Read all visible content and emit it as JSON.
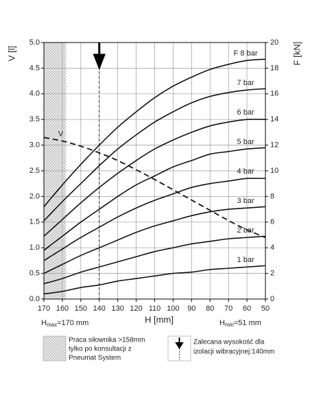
{
  "chart_data": {
    "type": "line",
    "x_label": "H [mm]",
    "y_label": "V [l]",
    "y2_label": "F [kN]",
    "hmax": {
      "base": "H",
      "sub": "max",
      "rest": "=170 mm"
    },
    "hmin": {
      "base": "H",
      "sub": "min",
      "rest": "=51 mm"
    },
    "x": [
      170,
      160,
      150,
      140,
      130,
      120,
      110,
      100,
      90,
      80,
      70,
      60,
      50
    ],
    "xlim": [
      170,
      50
    ],
    "xticks": [
      170,
      160,
      150,
      140,
      130,
      120,
      110,
      100,
      90,
      80,
      70,
      60,
      50
    ],
    "ylim": [
      0,
      5
    ],
    "yticks": [
      {
        "value": 0,
        "label": "0.0"
      },
      0.5,
      {
        "value": 1,
        "label": "1.0"
      },
      1.5,
      {
        "value": 2,
        "label": "2.0"
      },
      2.5,
      {
        "value": 3,
        "label": "3.0"
      },
      3.5,
      {
        "value": 4,
        "label": "4.0"
      },
      4.5,
      {
        "value": 5,
        "label": "5.0"
      }
    ],
    "y2lim": [
      0,
      20
    ],
    "y2ticks": [
      0,
      2,
      4,
      6,
      8,
      10,
      12,
      14,
      16,
      18,
      20
    ],
    "grid": true,
    "series": [
      {
        "name": "F 8 bar",
        "color": "#111111",
        "axis": "y2",
        "values": [
          7.2,
          8.9,
          10.5,
          12.0,
          13.4,
          14.6,
          15.7,
          16.6,
          17.3,
          17.9,
          18.3,
          18.6,
          18.7
        ]
      },
      {
        "name": "7 bar",
        "color": "#111111",
        "axis": "y2",
        "values": [
          6.1,
          7.6,
          9.0,
          10.4,
          11.7,
          12.8,
          13.8,
          14.6,
          15.3,
          15.8,
          16.1,
          16.3,
          16.4
        ]
      },
      {
        "name": "6 bar",
        "color": "#111111",
        "axis": "y2",
        "values": [
          4.9,
          6.2,
          7.5,
          8.7,
          9.8,
          10.8,
          11.7,
          12.4,
          13.0,
          13.5,
          13.8,
          14.0,
          14.0
        ]
      },
      {
        "name": "5 bar",
        "color": "#111111",
        "axis": "y2",
        "values": [
          3.8,
          4.9,
          6.0,
          7.0,
          8.0,
          8.9,
          9.6,
          10.3,
          10.8,
          11.3,
          11.5,
          11.7,
          11.8
        ]
      },
      {
        "name": "4 bar",
        "color": "#111111",
        "axis": "y2",
        "values": [
          3.0,
          3.9,
          4.8,
          5.6,
          6.4,
          7.1,
          7.7,
          8.2,
          8.7,
          9.0,
          9.2,
          9.4,
          9.4
        ]
      },
      {
        "name": "3 bar",
        "color": "#111111",
        "axis": "y2",
        "values": [
          2.0,
          2.7,
          3.4,
          4.0,
          4.6,
          5.2,
          5.7,
          6.1,
          6.5,
          6.8,
          7.0,
          7.1,
          7.2
        ]
      },
      {
        "name": "2 bar",
        "color": "#111111",
        "axis": "y2",
        "values": [
          1.2,
          1.6,
          2.1,
          2.5,
          2.9,
          3.3,
          3.7,
          4.0,
          4.3,
          4.5,
          4.7,
          4.8,
          4.9
        ]
      },
      {
        "name": "1 bar",
        "color": "#111111",
        "axis": "y2",
        "values": [
          0.4,
          0.6,
          0.9,
          1.1,
          1.4,
          1.6,
          1.8,
          2.0,
          2.1,
          2.3,
          2.4,
          2.5,
          2.6
        ]
      },
      {
        "name": "V",
        "color": "#111111",
        "axis": "y",
        "dashed": true,
        "values": [
          3.15,
          3.08,
          2.98,
          2.85,
          2.7,
          2.52,
          2.33,
          2.13,
          1.93,
          1.73,
          1.53,
          1.35,
          1.2
        ]
      }
    ],
    "restricted_range": [
      170,
      158
    ],
    "recommended_h": 140,
    "legend_restricted": [
      "Praca siłownika >158mm",
      "tylko po konsultacji z",
      "Pneumat System"
    ],
    "legend_recommended": [
      "Zalecana wysokość dla",
      "izolacji wibracyjnej:140mm"
    ]
  }
}
